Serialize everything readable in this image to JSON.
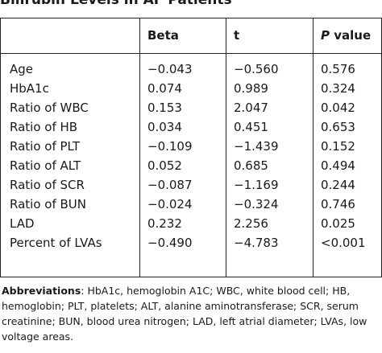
{
  "title": "Bilirubin Levels in AF Patients",
  "columns": [
    "",
    "Beta",
    "t",
    "P value"
  ],
  "rows": [
    {
      "label": "Age",
      "beta": "−0.043",
      "t": "−0.560",
      "p": "0.576"
    },
    {
      "label": "HbA1c",
      "beta": "0.074",
      "t": "0.989",
      "p": "0.324"
    },
    {
      "label": "Ratio of WBC",
      "beta": "0.153",
      "t": "2.047",
      "p": "0.042"
    },
    {
      "label": "Ratio of HB",
      "beta": "0.034",
      "t": "0.451",
      "p": "0.653"
    },
    {
      "label": "Ratio of PLT",
      "beta": "−0.109",
      "t": "−1.439",
      "p": "0.152"
    },
    {
      "label": "Ratio of ALT",
      "beta": "0.052",
      "t": "0.685",
      "p": "0.494"
    },
    {
      "label": "Ratio of SCR",
      "beta": "−0.087",
      "t": "−1.169",
      "p": "0.244"
    },
    {
      "label": "Ratio of BUN",
      "beta": "−0.024",
      "t": "−0.324",
      "p": "0.746"
    },
    {
      "label": "LAD",
      "beta": "0.232",
      "t": "2.256",
      "p": "0.025"
    },
    {
      "label": "Percent of LVAs",
      "beta": "−0.490",
      "t": "−4.783",
      "p": "<0.001"
    }
  ],
  "footnote": {
    "label": "Abbreviations",
    "text": ": HbA1c, hemoglobin A1C; WBC, white blood cell; HB, hemoglobin; PLT, platelets; ALT, alanine aminotransferase; SCR, serum creatinine; BUN, blood urea nitrogen; LAD, left atrial diameter; LVAs, low voltage areas."
  }
}
